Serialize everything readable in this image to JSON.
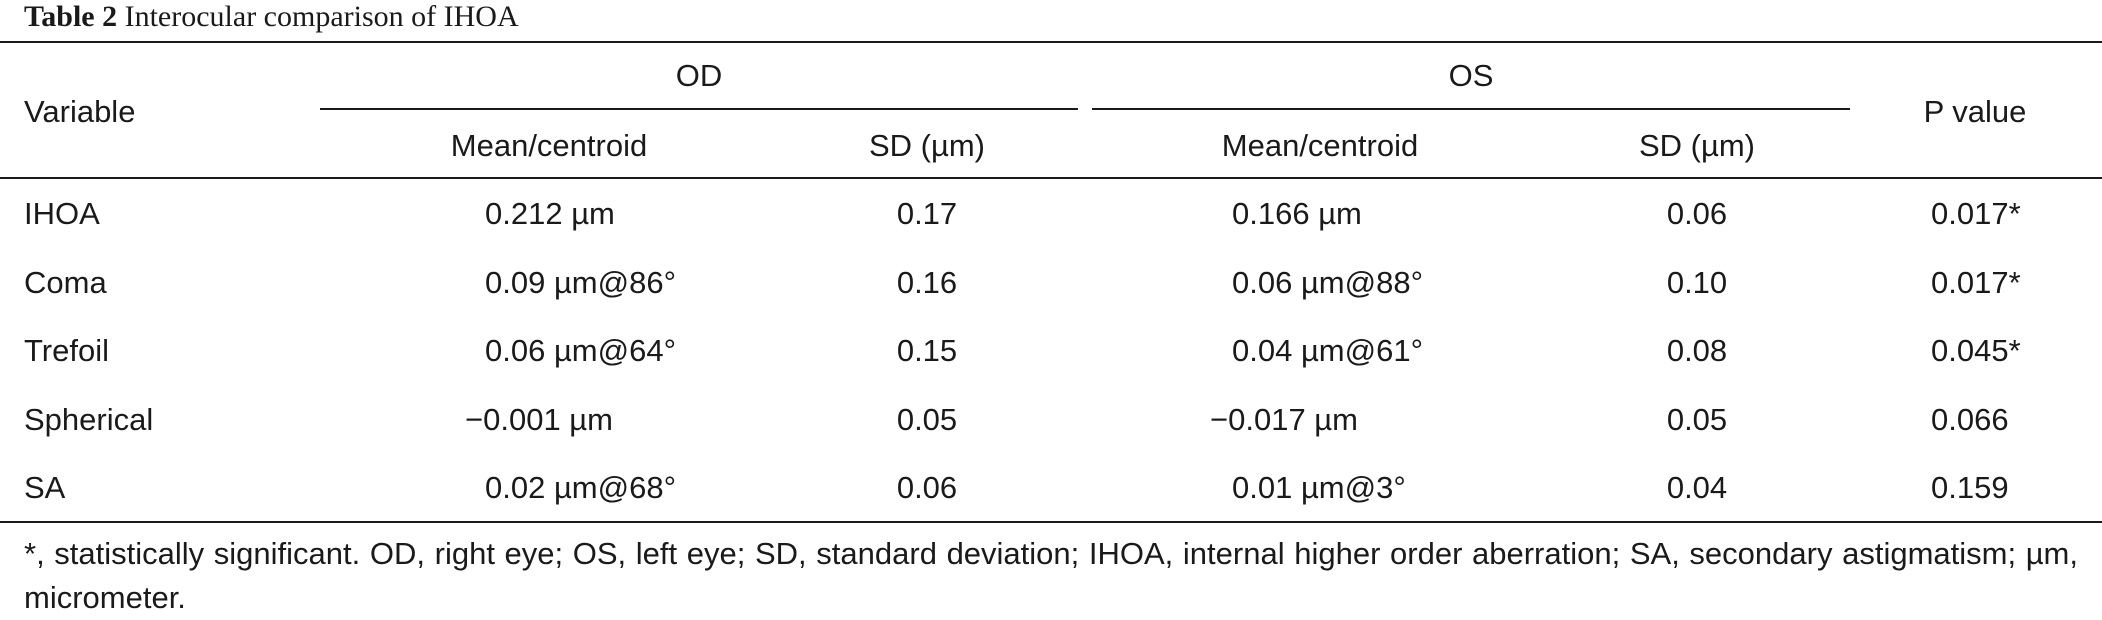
{
  "caption": {
    "label": "Table 2",
    "title": " Interocular comparison of IHOA"
  },
  "table": {
    "header": {
      "variable": "Variable",
      "group_od": "OD",
      "group_os": "OS",
      "pvalue": "P value",
      "od_mean": "Mean/centroid",
      "od_sd": "SD (µm)",
      "os_mean": "Mean/centroid",
      "os_sd": "SD (µm)"
    },
    "rows": [
      {
        "variable": "IHOA",
        "od_mean": "0.212 µm",
        "od_sd": "0.17",
        "os_mean": "0.166 µm",
        "os_sd": "0.06",
        "p": "0.017*"
      },
      {
        "variable": "Coma",
        "od_mean": "0.09 µm@86°",
        "od_sd": "0.16",
        "os_mean": "0.06 µm@88°",
        "os_sd": "0.10",
        "p": "0.017*"
      },
      {
        "variable": "Trefoil",
        "od_mean": "0.06 µm@64°",
        "od_sd": "0.15",
        "os_mean": "0.04 µm@61°",
        "os_sd": "0.08",
        "p": "0.045*"
      },
      {
        "variable": "Spherical",
        "od_mean": "−0.001 µm",
        "od_sd": "0.05",
        "os_mean": "−0.017 µm",
        "os_sd": "0.05",
        "p": "0.066"
      },
      {
        "variable": "SA",
        "od_mean": "0.02 µm@68°",
        "od_sd": "0.06",
        "os_mean": "0.01 µm@3°",
        "os_sd": "0.04",
        "p": "0.159"
      }
    ]
  },
  "footnote": "*, statistically significant. OD, right eye; OS, left eye; SD, standard deviation; IHOA, internal higher order aberration; SA, secondary astigmatism; µm, micrometer."
}
